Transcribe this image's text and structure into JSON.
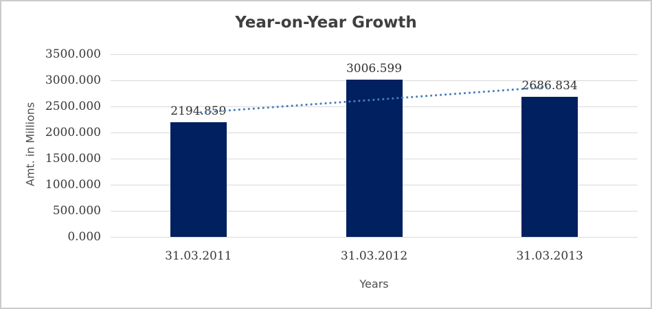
{
  "chart": {
    "title": "Year-on-Year Growth",
    "y_axis_title": "Amt. in Millions",
    "x_axis_title": "Years"
  },
  "chart_data": {
    "type": "bar",
    "title": "Year-on-Year Growth",
    "categories": [
      "31.03.2011",
      "31.03.2012",
      "31.03.2013"
    ],
    "values": [
      2194.859,
      3006.599,
      2686.834
    ],
    "data_labels": [
      "2194.859",
      "3006.599",
      "2686.834"
    ],
    "xlabel": "Years",
    "ylabel": "Amt. in Millions",
    "ylim": [
      0,
      3500
    ],
    "ytick_step": 500,
    "yticks": [
      "3500.000",
      "3000.000",
      "2500.000",
      "2000.000",
      "1500.000",
      "1000.000",
      "500.000",
      "0.000"
    ],
    "grid": true,
    "legend_position": "none",
    "trendline": {
      "type": "linear",
      "style": "dotted"
    }
  },
  "colors": {
    "bar": "#002060",
    "trendline": "#4a7ebb",
    "gridline": "#d9d9d9",
    "title_text": "#3f3f3f",
    "label_text": "#383838",
    "axis_title_text": "#4d4d4d",
    "frame_border": "#cbcbcb"
  }
}
